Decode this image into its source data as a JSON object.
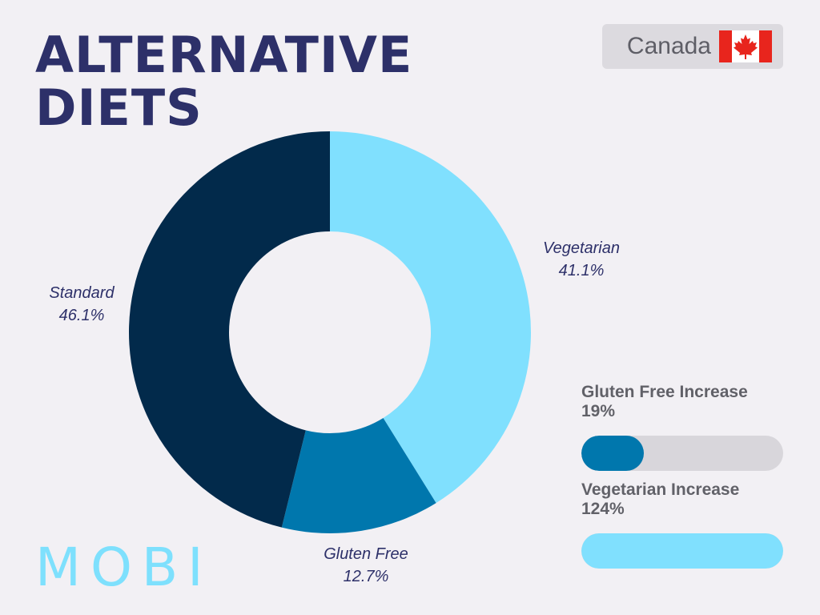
{
  "title_lines": [
    "ALTERNATIVE",
    "DIETS"
  ],
  "country": {
    "name": "Canada",
    "flag_icon": "canada-flag-icon"
  },
  "chart_data": {
    "type": "pie",
    "donut": true,
    "slices": [
      {
        "label": "Vegetarian",
        "value": 41.1,
        "display": "41.1%",
        "color": "#80e0fe"
      },
      {
        "label": "Gluten Free",
        "value": 12.7,
        "display": "12.7%",
        "color": "#0077ad"
      },
      {
        "label": "Standard",
        "value": 46.1,
        "display": "46.1%",
        "color": "#022a4b"
      }
    ]
  },
  "stats": [
    {
      "title": "Gluten Free Increase",
      "value_text": "19%",
      "value": 19,
      "fill_fraction": 0.31,
      "fill_color": "#0077ad"
    },
    {
      "title": "Vegetarian Increase",
      "value_text": "124%",
      "value": 124,
      "fill_fraction": 1.0,
      "fill_color": "#80e0fe"
    }
  ],
  "logo": "MOBI"
}
